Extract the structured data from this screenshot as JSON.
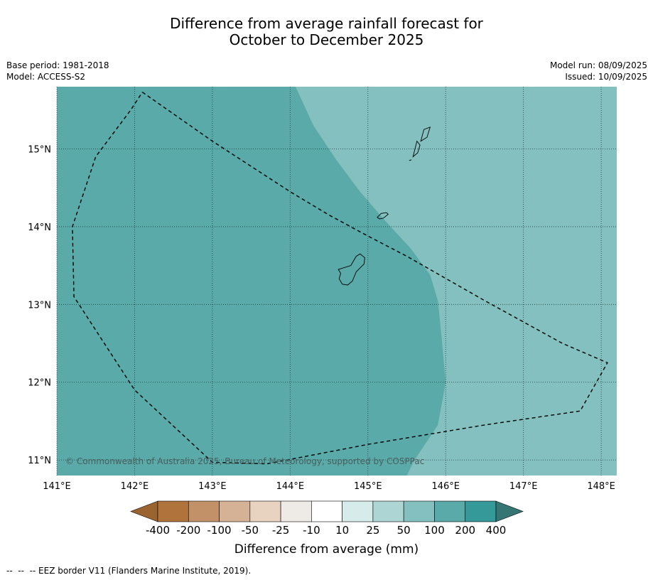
{
  "title": {
    "line1": "Difference from average rainfall forecast for",
    "line2": "October to December 2025"
  },
  "meta_left": {
    "base_period": "Base period: 1981-2018",
    "model": "Model: ACCESS-S2"
  },
  "meta_right": {
    "model_run": "Model run: 08/09/2025",
    "issued": "Issued: 10/09/2025"
  },
  "map": {
    "lon_range": [
      141.0,
      148.2
    ],
    "lat_range": [
      10.8,
      15.8
    ],
    "x_ticks": [
      141,
      142,
      143,
      144,
      145,
      146,
      147,
      148
    ],
    "x_tick_labels": [
      "141°E",
      "142°E",
      "143°E",
      "144°E",
      "145°E",
      "146°E",
      "147°E",
      "148°E"
    ],
    "y_ticks": [
      11,
      12,
      13,
      14,
      15
    ],
    "y_tick_labels": [
      "11°N",
      "12°N",
      "13°N",
      "14°N",
      "15°N"
    ],
    "regions": [
      {
        "category": "100 to 200",
        "color": "#5aaaaa"
      },
      {
        "category": "50 to 100",
        "color": "#84c0bf"
      }
    ],
    "boundary_100_200": [
      [
        144.07,
        15.8
      ],
      [
        144.3,
        15.3
      ],
      [
        144.6,
        14.85
      ],
      [
        144.9,
        14.45
      ],
      [
        145.2,
        14.1
      ],
      [
        145.55,
        13.72
      ],
      [
        145.8,
        13.38
      ],
      [
        145.9,
        13.05
      ],
      [
        145.95,
        12.55
      ],
      [
        146.0,
        12.0
      ],
      [
        145.9,
        11.45
      ],
      [
        145.6,
        11.0
      ],
      [
        145.5,
        10.8
      ]
    ],
    "eez_border": [
      [
        142.1,
        15.73
      ],
      [
        143.0,
        15.1
      ],
      [
        144.0,
        14.45
      ],
      [
        144.5,
        14.15
      ],
      [
        145.0,
        13.88
      ],
      [
        145.5,
        13.62
      ],
      [
        146.5,
        13.05
      ],
      [
        147.5,
        12.5
      ],
      [
        148.08,
        12.25
      ],
      [
        147.73,
        11.63
      ],
      [
        146.5,
        11.45
      ],
      [
        145.0,
        11.2
      ],
      [
        143.7,
        10.95
      ],
      [
        143.0,
        10.97
      ],
      [
        142.0,
        11.9
      ],
      [
        141.22,
        13.1
      ],
      [
        141.2,
        14.0
      ],
      [
        141.5,
        14.9
      ],
      [
        141.95,
        15.5
      ],
      [
        142.1,
        15.73
      ]
    ],
    "islands": [
      {
        "name": "Guam",
        "outline": [
          [
            144.62,
            13.45
          ],
          [
            144.78,
            13.5
          ],
          [
            144.85,
            13.62
          ],
          [
            144.9,
            13.65
          ],
          [
            144.96,
            13.6
          ],
          [
            144.95,
            13.52
          ],
          [
            144.85,
            13.42
          ],
          [
            144.8,
            13.3
          ],
          [
            144.74,
            13.25
          ],
          [
            144.67,
            13.26
          ],
          [
            144.63,
            13.33
          ],
          [
            144.65,
            13.4
          ]
        ]
      },
      {
        "name": "Rota",
        "outline": [
          [
            145.12,
            14.12
          ],
          [
            145.17,
            14.17
          ],
          [
            145.24,
            14.18
          ],
          [
            145.26,
            14.16
          ],
          [
            145.2,
            14.11
          ],
          [
            145.15,
            14.1
          ]
        ]
      },
      {
        "name": "Tinian",
        "outline": [
          [
            145.58,
            14.9
          ],
          [
            145.63,
            15.1
          ],
          [
            145.67,
            15.05
          ],
          [
            145.64,
            14.95
          ]
        ]
      },
      {
        "name": "Saipan",
        "outline": [
          [
            145.68,
            15.1
          ],
          [
            145.72,
            15.25
          ],
          [
            145.8,
            15.28
          ],
          [
            145.76,
            15.15
          ]
        ]
      },
      {
        "name": "Aguijan",
        "outline": [
          [
            145.53,
            14.85
          ],
          [
            145.56,
            14.86
          ]
        ]
      }
    ],
    "copyright": "© Commonwealth of Australia 2025, Bureau of Meteorology, supported by COSPPac"
  },
  "colorbar": {
    "under_color": "#9a6330",
    "over_color": "#357675",
    "colors": [
      "#b0733c",
      "#c29168",
      "#d5b195",
      "#e8d2c0",
      "#eeeae6",
      "#ffffff",
      "#d5ecea",
      "#acd5d4",
      "#84c0bf",
      "#5aaaaa",
      "#359999"
    ],
    "tick_labels": [
      "-400",
      "-200",
      "-100",
      "-50",
      "-25",
      "-10",
      "10",
      "25",
      "50",
      "100",
      "200",
      "400"
    ],
    "label": "Difference from average (mm)"
  },
  "footnote": "--  --  -- EEZ border V11 (Flanders Marine Institute, 2019)."
}
